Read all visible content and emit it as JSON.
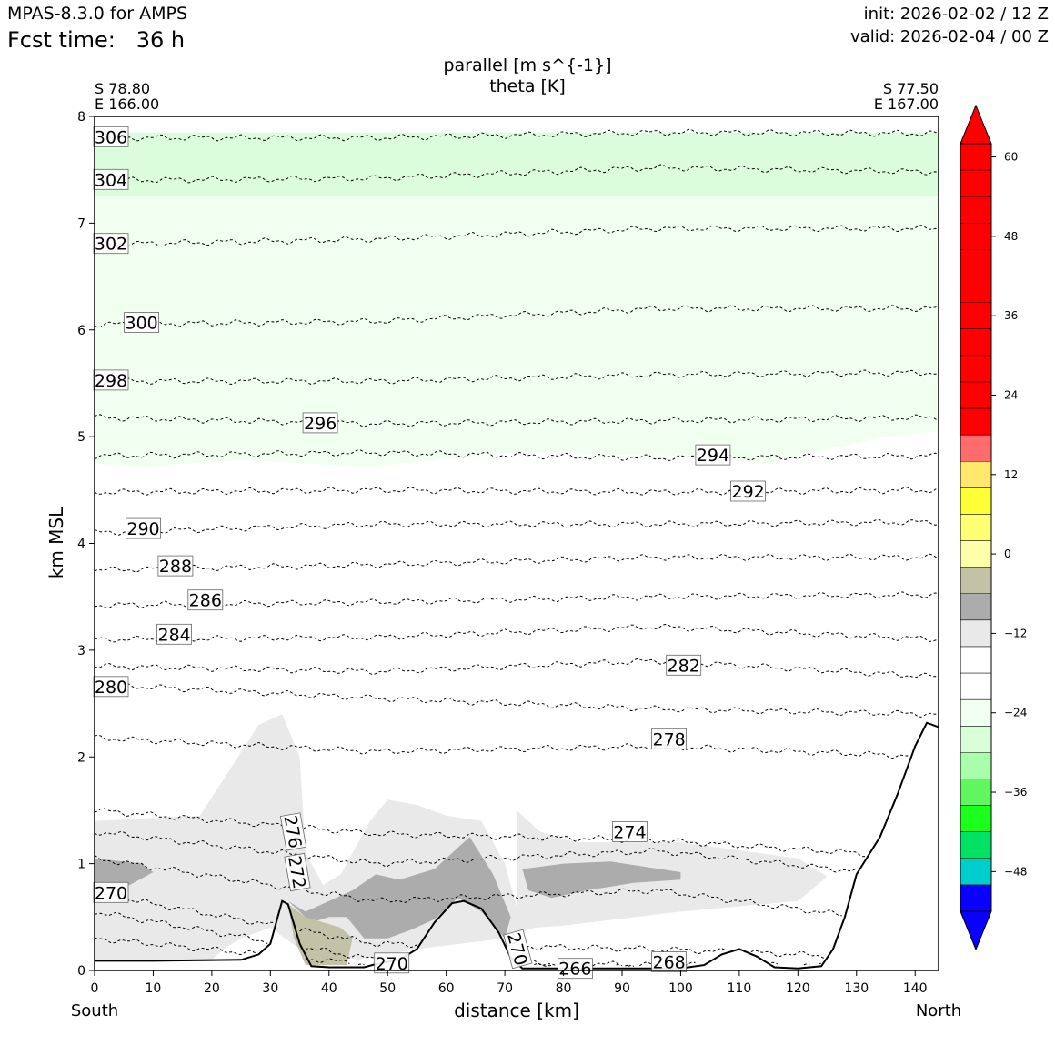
{
  "header": {
    "model": "MPAS-8.3.0 for AMPS",
    "fcst_label": "Fcst time:",
    "fcst_value": "36 h",
    "init": "init: 2026-02-02 / 12 Z",
    "valid": "valid: 2026-02-04 / 00 Z"
  },
  "chart_data": {
    "type": "cross-section",
    "title": [
      "parallel [m s^{-1}]",
      "theta [K]"
    ],
    "xlabel": "distance [km]",
    "ylabel": "km MSL",
    "xlim": [
      0,
      144
    ],
    "ylim": [
      0,
      8
    ],
    "x_ticks": [
      0,
      10,
      20,
      30,
      40,
      50,
      60,
      70,
      80,
      90,
      100,
      110,
      120,
      130,
      140
    ],
    "y_ticks": [
      0,
      1,
      2,
      3,
      4,
      5,
      6,
      7,
      8
    ],
    "left_end": {
      "lat": "S 78.80",
      "lon": "E 166.00",
      "label": "South"
    },
    "right_end": {
      "lat": "S 77.50",
      "lon": "E 167.00",
      "label": "North"
    },
    "colorbar": {
      "ticks": [
        60,
        48,
        36,
        24,
        12,
        0,
        -12,
        -24,
        -36,
        -48
      ],
      "tick_labels": [
        "60",
        "48",
        "36",
        "24",
        "12",
        "0",
        "−12",
        "−24",
        "−36",
        "−48"
      ],
      "levels": [
        -54,
        -50,
        -46,
        -42,
        -38,
        -34,
        -30,
        -26,
        -22,
        -18,
        -14,
        -10,
        -6,
        -2,
        2,
        6,
        10,
        14,
        18,
        22,
        26,
        30,
        34,
        38,
        42,
        46,
        50,
        54,
        58,
        62
      ],
      "bins": [
        {
          "lo": -54,
          "hi": -50,
          "color": "#0a00ff"
        },
        {
          "lo": -50,
          "hi": -46,
          "color": "#00cdcd"
        },
        {
          "lo": -46,
          "hi": -42,
          "color": "#00e263"
        },
        {
          "lo": -42,
          "hi": -38,
          "color": "#1cff1c"
        },
        {
          "lo": -38,
          "hi": -34,
          "color": "#5ff65f"
        },
        {
          "lo": -34,
          "hi": -30,
          "color": "#a9ffa9"
        },
        {
          "lo": -30,
          "hi": -26,
          "color": "#d9ffd9"
        },
        {
          "lo": -26,
          "hi": -22,
          "color": "#f0fff0"
        },
        {
          "lo": -22,
          "hi": -18,
          "color": "#ffffff"
        },
        {
          "lo": -18,
          "hi": -14,
          "color": "#ffffff"
        },
        {
          "lo": -14,
          "hi": -10,
          "color": "#e9e9e9"
        },
        {
          "lo": -10,
          "hi": -6,
          "color": "#acacac"
        },
        {
          "lo": -6,
          "hi": -2,
          "color": "#c2c2a6"
        },
        {
          "lo": -2,
          "hi": 2,
          "color": "#ffffa9"
        },
        {
          "lo": 2,
          "hi": 6,
          "color": "#ffff74"
        },
        {
          "lo": 6,
          "hi": 10,
          "color": "#ffff35"
        },
        {
          "lo": 10,
          "hi": 14,
          "color": "#ffe86c"
        },
        {
          "lo": 14,
          "hi": 18,
          "color": "#ff6c6c"
        },
        {
          "lo": 18,
          "hi": 22,
          "color": "#ff0000"
        }
      ],
      "over_color": "#ff0000",
      "under_color": "#0a00ff"
    },
    "terrain": [
      [
        0,
        0.09
      ],
      [
        10,
        0.09
      ],
      [
        25,
        0.1
      ],
      [
        28,
        0.15
      ],
      [
        30,
        0.25
      ],
      [
        32,
        0.65
      ],
      [
        33,
        0.62
      ],
      [
        35,
        0.25
      ],
      [
        37,
        0.04
      ],
      [
        40,
        0.03
      ],
      [
        46,
        0.03
      ],
      [
        48,
        0.06
      ],
      [
        52,
        0.1
      ],
      [
        55,
        0.2
      ],
      [
        58,
        0.45
      ],
      [
        61,
        0.63
      ],
      [
        63,
        0.65
      ],
      [
        66,
        0.58
      ],
      [
        69,
        0.35
      ],
      [
        71,
        0.12
      ],
      [
        73,
        0.02
      ],
      [
        80,
        0.02
      ],
      [
        100,
        0.02
      ],
      [
        104,
        0.05
      ],
      [
        107,
        0.15
      ],
      [
        110,
        0.2
      ],
      [
        113,
        0.13
      ],
      [
        116,
        0.03
      ],
      [
        120,
        0.02
      ],
      [
        124,
        0.04
      ],
      [
        126,
        0.2
      ],
      [
        128,
        0.5
      ],
      [
        130,
        0.9
      ],
      [
        134,
        1.25
      ],
      [
        137,
        1.65
      ],
      [
        140,
        2.1
      ],
      [
        142,
        2.32
      ],
      [
        144,
        2.28
      ]
    ],
    "shaded_regions": [
      {
        "level": "-26 to -22",
        "color": "#dbfddb",
        "bottom": [
          [
            0,
            7.25
          ],
          [
            20,
            7.2
          ],
          [
            40,
            7.15
          ],
          [
            55,
            7.2
          ],
          [
            80,
            7.1
          ],
          [
            110,
            7.15
          ],
          [
            125,
            6.95
          ],
          [
            144,
            7.05
          ]
        ],
        "top": 7.85
      },
      {
        "level": "-22 to -18",
        "color": "#f0fff0",
        "bottom": [
          [
            0,
            4.75
          ],
          [
            8,
            4.72
          ],
          [
            25,
            4.78
          ],
          [
            47,
            4.72
          ],
          [
            70,
            4.85
          ],
          [
            100,
            4.82
          ],
          [
            115,
            4.75
          ],
          [
            122,
            4.85
          ],
          [
            135,
            5.0
          ],
          [
            144,
            5.05
          ]
        ],
        "top": 7.25
      },
      {
        "level": "-14 to -10",
        "polygons": [
          [
            [
              0,
              1.4
            ],
            [
              18,
              1.45
            ],
            [
              28,
              2.3
            ],
            [
              32,
              2.4
            ],
            [
              35,
              2.0
            ],
            [
              36,
              1.1
            ],
            [
              39,
              0.8
            ],
            [
              42,
              0.9
            ],
            [
              47,
              1.4
            ],
            [
              50,
              1.6
            ],
            [
              55,
              1.55
            ],
            [
              60,
              1.45
            ],
            [
              66,
              1.4
            ],
            [
              70,
              1.0
            ],
            [
              72,
              0.6
            ],
            [
              72,
              1.5
            ],
            [
              76,
              1.3
            ],
            [
              82,
              1.2
            ],
            [
              100,
              1.2
            ],
            [
              120,
              1.05
            ],
            [
              125,
              0.88
            ],
            [
              120,
              0.65
            ],
            [
              100,
              0.55
            ],
            [
              80,
              0.42
            ],
            [
              75,
              0.4
            ],
            [
              70,
              0.3
            ],
            [
              55,
              0.2
            ],
            [
              45,
              0.1
            ],
            [
              35,
              0.2
            ],
            [
              30,
              0.4
            ],
            [
              25,
              0.3
            ],
            [
              22,
              0.2
            ],
            [
              20,
              0.1
            ],
            [
              0,
              0.1
            ]
          ]
        ]
      },
      {
        "level": "-10 to -6",
        "polygons": [
          [
            [
              0,
              1.05
            ],
            [
              8,
              1.0
            ],
            [
              10,
              0.92
            ],
            [
              6,
              0.8
            ],
            [
              0,
              0.75
            ]
          ],
          [
            [
              33,
              0.65
            ],
            [
              36,
              0.55
            ],
            [
              40,
              0.65
            ],
            [
              44,
              0.75
            ],
            [
              48,
              0.9
            ],
            [
              52,
              0.85
            ],
            [
              58,
              0.95
            ],
            [
              61,
              1.1
            ],
            [
              64,
              1.25
            ],
            [
              68,
              0.9
            ],
            [
              71,
              0.5
            ],
            [
              70,
              0.3
            ],
            [
              66,
              0.55
            ],
            [
              62,
              0.68
            ],
            [
              58,
              0.48
            ],
            [
              54,
              0.38
            ],
            [
              50,
              0.3
            ],
            [
              46,
              0.3
            ],
            [
              43,
              0.5
            ],
            [
              40,
              0.5
            ],
            [
              37,
              0.45
            ]
          ],
          [
            [
              73,
              0.95
            ],
            [
              80,
              1.0
            ],
            [
              88,
              1.02
            ],
            [
              100,
              0.92
            ],
            [
              100,
              0.85
            ],
            [
              92,
              0.82
            ],
            [
              84,
              0.75
            ],
            [
              78,
              0.68
            ],
            [
              74,
              0.75
            ]
          ]
        ]
      },
      {
        "level": "-6 to -2",
        "polygons": [
          [
            [
              33,
              0.62
            ],
            [
              34,
              0.3
            ],
            [
              36,
              0.05
            ],
            [
              43,
              0.05
            ],
            [
              44,
              0.3
            ],
            [
              42,
              0.4
            ],
            [
              39,
              0.45
            ],
            [
              36,
              0.5
            ]
          ]
        ]
      }
    ],
    "theta_contours": [
      {
        "value": 306,
        "y": [
          7.8,
          7.8,
          7.85,
          7.84
        ]
      },
      {
        "value": 304,
        "y": [
          7.4,
          7.42,
          7.52,
          7.48
        ]
      },
      {
        "value": 302,
        "y": [
          6.8,
          6.85,
          6.95,
          6.95
        ]
      },
      {
        "value": 300,
        "y": [
          6.05,
          6.08,
          6.2,
          6.2
        ]
      },
      {
        "value": 298,
        "y": [
          5.52,
          5.52,
          5.58,
          5.6
        ]
      },
      {
        "value": 296,
        "y": [
          5.18,
          5.12,
          5.15,
          5.18
        ]
      },
      {
        "value": 294,
        "y": [
          4.82,
          4.85,
          4.8,
          4.82
        ]
      },
      {
        "value": 292,
        "y": [
          4.48,
          4.5,
          4.48,
          4.5
        ]
      },
      {
        "value": 290,
        "y": [
          4.1,
          4.18,
          4.18,
          4.2
        ]
      },
      {
        "value": 288,
        "y": [
          3.75,
          3.8,
          3.87,
          3.87
        ]
      },
      {
        "value": 286,
        "y": [
          3.42,
          3.45,
          3.5,
          3.52
        ]
      },
      {
        "value": 284,
        "y": [
          3.1,
          3.12,
          3.22,
          3.1
        ]
      },
      {
        "value": 282,
        "y": [
          2.85,
          2.8,
          2.9,
          2.75
        ]
      },
      {
        "value": 280,
        "y": [
          2.68,
          2.55,
          2.45,
          2.4
        ]
      },
      {
        "value": 278,
        "y": [
          2.18,
          2.05,
          2.1,
          2.0
        ]
      },
      {
        "value": 276,
        "y": [
          1.5,
          1.28,
          1.22,
          1.05
        ]
      },
      {
        "value": 274,
        "y": [
          1.3,
          1.0,
          1.12,
          0.85
        ]
      },
      {
        "value": 272,
        "y": [
          1.05,
          0.65,
          0.75,
          0.4
        ]
      },
      {
        "value": 270,
        "y": [
          0.72,
          0.25,
          0.2,
          0.1
        ]
      },
      {
        "value": 268,
        "y": [
          0.55,
          0.1,
          0.05,
          0.04
        ]
      },
      {
        "value": 266,
        "y": [
          0.3,
          0.05,
          0.03,
          0.02
        ]
      }
    ],
    "contour_labels": [
      {
        "text": "306",
        "x": 2.8,
        "y": 7.81,
        "rot": 0
      },
      {
        "text": "304",
        "x": 2.8,
        "y": 7.41,
        "rot": 0
      },
      {
        "text": "302",
        "x": 2.8,
        "y": 6.81,
        "rot": 0
      },
      {
        "text": "300",
        "x": 8.0,
        "y": 6.07,
        "rot": 0
      },
      {
        "text": "298",
        "x": 2.8,
        "y": 5.53,
        "rot": 0
      },
      {
        "text": "296",
        "x": 38.5,
        "y": 5.13,
        "rot": 0
      },
      {
        "text": "294",
        "x": 105.5,
        "y": 4.83,
        "rot": 0
      },
      {
        "text": "292",
        "x": 111.5,
        "y": 4.49,
        "rot": 0
      },
      {
        "text": "290",
        "x": 8.3,
        "y": 4.14,
        "rot": 0
      },
      {
        "text": "288",
        "x": 13.8,
        "y": 3.79,
        "rot": 0
      },
      {
        "text": "286",
        "x": 18.9,
        "y": 3.47,
        "rot": 0
      },
      {
        "text": "284",
        "x": 13.6,
        "y": 3.15,
        "rot": 0
      },
      {
        "text": "282",
        "x": 100.5,
        "y": 2.86,
        "rot": 0
      },
      {
        "text": "280",
        "x": 2.8,
        "y": 2.66,
        "rot": 0
      },
      {
        "text": "278",
        "x": 98.0,
        "y": 2.17,
        "rot": 0
      },
      {
        "text": "276",
        "x": 33.9,
        "y": 1.3,
        "rot": 80
      },
      {
        "text": "274",
        "x": 91.3,
        "y": 1.3,
        "rot": 0
      },
      {
        "text": "272",
        "x": 34.6,
        "y": 0.92,
        "rot": 80
      },
      {
        "text": "270",
        "x": 2.8,
        "y": 0.73,
        "rot": 0
      },
      {
        "text": "270",
        "x": 50.7,
        "y": 0.07,
        "rot": 0
      },
      {
        "text": "270",
        "x": 72.2,
        "y": 0.2,
        "rot": 75
      },
      {
        "text": "266",
        "x": 82.0,
        "y": 0.02,
        "rot": 0
      },
      {
        "text": "268",
        "x": 98.0,
        "y": 0.08,
        "rot": 0
      }
    ]
  }
}
